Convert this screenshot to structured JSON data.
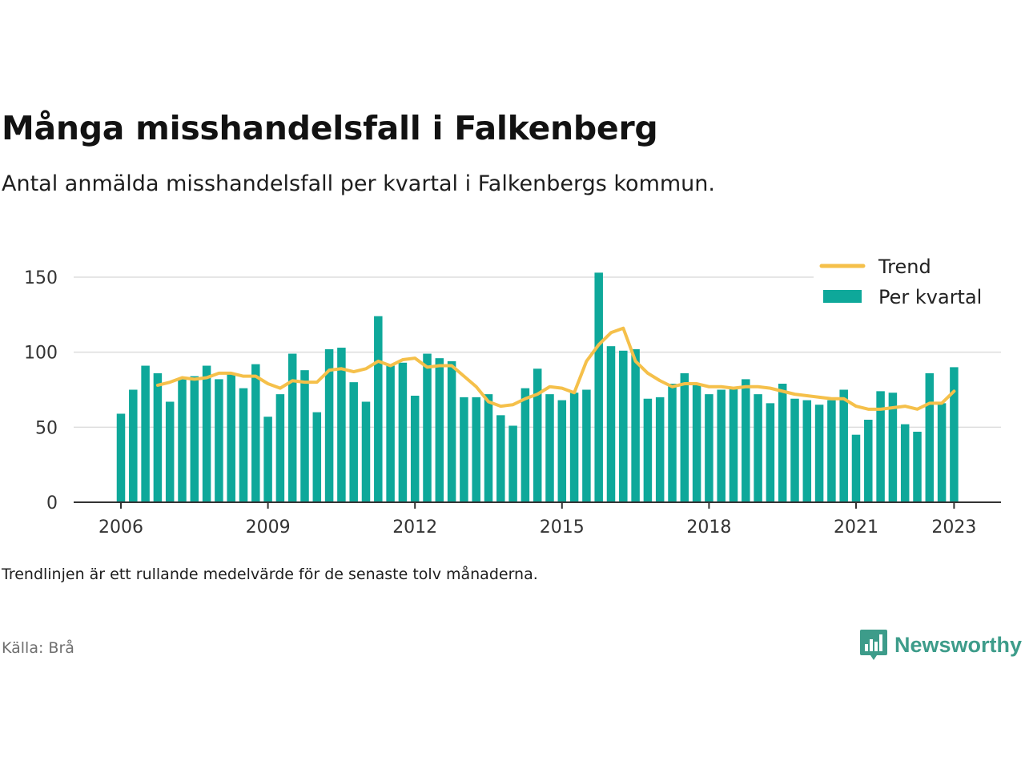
{
  "header": {
    "title": "Många misshandelsfall i Falkenberg",
    "subtitle": "Antal anmälda misshandelsfall per kvartal i Falkenbergs kommun."
  },
  "footer": {
    "note": "Trendlinjen är ett rullande medelvärde för de senaste tolv månaderna.",
    "source": "Källa: Brå",
    "brand": "Newsworthy"
  },
  "icons": {
    "brand": "bar-chart-speech-bubble-icon"
  },
  "colors": {
    "bars": "#0ea89a",
    "trend": "#f5c04a",
    "grid": "#dddddd",
    "axis": "#333333",
    "brand": "#3d9c8a"
  },
  "chart_data": {
    "type": "bar",
    "title": "Många misshandelsfall i Falkenberg",
    "subtitle": "Antal anmälda misshandelsfall per kvartal i Falkenbergs kommun.",
    "xlabel": "",
    "ylabel": "",
    "ylim": [
      0,
      155
    ],
    "yticks": [
      0,
      50,
      100,
      150
    ],
    "xticks": [
      "2006",
      "2009",
      "2012",
      "2015",
      "2018",
      "2021",
      "2023"
    ],
    "grid": true,
    "legend_position": "top-right",
    "categories": [
      "2006 Q1",
      "2006 Q2",
      "2006 Q3",
      "2006 Q4",
      "2007 Q1",
      "2007 Q2",
      "2007 Q3",
      "2007 Q4",
      "2008 Q1",
      "2008 Q2",
      "2008 Q3",
      "2008 Q4",
      "2009 Q1",
      "2009 Q2",
      "2009 Q3",
      "2009 Q4",
      "2010 Q1",
      "2010 Q2",
      "2010 Q3",
      "2010 Q4",
      "2011 Q1",
      "2011 Q2",
      "2011 Q3",
      "2011 Q4",
      "2012 Q1",
      "2012 Q2",
      "2012 Q3",
      "2012 Q4",
      "2013 Q1",
      "2013 Q2",
      "2013 Q3",
      "2013 Q4",
      "2014 Q1",
      "2014 Q2",
      "2014 Q3",
      "2014 Q4",
      "2015 Q1",
      "2015 Q2",
      "2015 Q3",
      "2015 Q4",
      "2016 Q1",
      "2016 Q2",
      "2016 Q3",
      "2016 Q4",
      "2017 Q1",
      "2017 Q2",
      "2017 Q3",
      "2017 Q4",
      "2018 Q1",
      "2018 Q2",
      "2018 Q3",
      "2018 Q4",
      "2019 Q1",
      "2019 Q2",
      "2019 Q3",
      "2019 Q4",
      "2020 Q1",
      "2020 Q2",
      "2020 Q3",
      "2020 Q4",
      "2021 Q1",
      "2021 Q2",
      "2021 Q3",
      "2021 Q4",
      "2022 Q1",
      "2022 Q2",
      "2022 Q3",
      "2022 Q4",
      "2023 Q1"
    ],
    "series": [
      {
        "name": "Per kvartal",
        "type": "bar",
        "values": [
          59,
          75,
          91,
          86,
          67,
          82,
          84,
          91,
          82,
          86,
          76,
          92,
          57,
          72,
          99,
          88,
          60,
          102,
          103,
          80,
          67,
          124,
          91,
          93,
          71,
          99,
          96,
          94,
          70,
          70,
          72,
          58,
          51,
          76,
          89,
          72,
          68,
          73,
          75,
          153,
          104,
          101,
          102,
          69,
          70,
          79,
          86,
          79,
          72,
          75,
          76,
          82,
          72,
          66,
          79,
          69,
          68,
          65,
          68,
          75,
          45,
          55,
          74,
          73,
          52,
          47,
          86,
          66,
          90
        ]
      },
      {
        "name": "Trend",
        "type": "line",
        "values": [
          null,
          null,
          null,
          78,
          80,
          83,
          82,
          83,
          86,
          86,
          84,
          84,
          79,
          76,
          81,
          80,
          80,
          88,
          89,
          87,
          89,
          94,
          91,
          95,
          96,
          90,
          91,
          91,
          84,
          77,
          67,
          64,
          65,
          69,
          72,
          77,
          76,
          73,
          94,
          105,
          113,
          116,
          94,
          86,
          81,
          77,
          79,
          79,
          77,
          77,
          76,
          77,
          77,
          76,
          74,
          72,
          71,
          70,
          69,
          69,
          64,
          62,
          62,
          63,
          64,
          62,
          66,
          66,
          74
        ]
      }
    ]
  }
}
